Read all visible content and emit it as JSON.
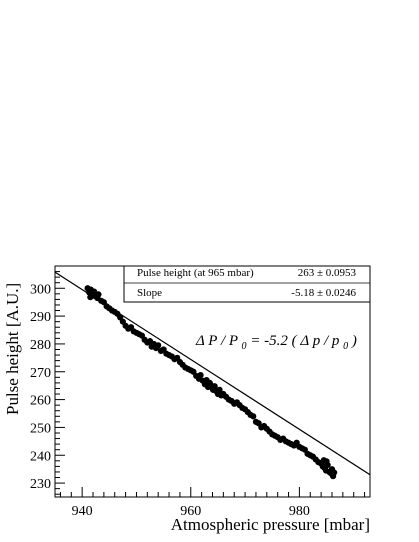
{
  "chart_data": {
    "type": "scatter",
    "title": "",
    "xlabel": "Atmospheric pressure [mbar]",
    "ylabel": "Pulse height [A.U.]",
    "xlim": [
      935,
      993
    ],
    "ylim": [
      225,
      308
    ],
    "xticks": [
      940,
      960,
      980
    ],
    "yticks": [
      230,
      240,
      250,
      260,
      270,
      280,
      290,
      300
    ],
    "grid": false,
    "legend": "none",
    "marker_color": "#000000",
    "stats_box": {
      "rows": [
        {
          "label": "Pulse height (at 965 mbar)",
          "value": "263 ± 0.0953"
        },
        {
          "label": "Slope",
          "value": "-5.18 ± 0.0246"
        }
      ]
    },
    "annotation": {
      "delta": "Δ",
      "P": "P",
      "slash": " /",
      "P0_base": "P",
      "P0_sub": "0",
      "equals": " = -5.2 (",
      "p": "p",
      "slash2": " / ",
      "p0_base": "p",
      "p0_sub": "0",
      "close": ")"
    },
    "fit_line": {
      "x": [
        935,
        993
      ],
      "y": [
        305.8,
        233.0
      ]
    },
    "series": [
      {
        "points": [
          [
            941.0,
            300.0
          ],
          [
            941.3,
            298.5
          ],
          [
            941.6,
            299.5
          ],
          [
            941.9,
            297.5
          ],
          [
            942.2,
            298.8
          ],
          [
            942.5,
            297.0
          ],
          [
            941.5,
            296.8
          ],
          [
            942.8,
            296.5
          ],
          [
            943.0,
            297.8
          ],
          [
            943.5,
            295.5
          ],
          [
            944.0,
            295.0
          ],
          [
            944.5,
            293.5
          ],
          [
            945.0,
            292.8
          ],
          [
            945.5,
            292.0
          ],
          [
            946.0,
            291.5
          ],
          [
            946.5,
            290.8
          ],
          [
            947.0,
            289.5
          ],
          [
            947.5,
            288.0
          ],
          [
            948.0,
            286.5
          ],
          [
            948.5,
            285.5
          ],
          [
            949.0,
            286.0
          ],
          [
            949.5,
            284.5
          ],
          [
            950.0,
            284.0
          ],
          [
            950.5,
            283.5
          ],
          [
            951.0,
            283.0
          ],
          [
            951.5,
            281.5
          ],
          [
            952.0,
            280.5
          ],
          [
            952.5,
            281.0
          ],
          [
            952.8,
            279.0
          ],
          [
            953.2,
            280.0
          ],
          [
            953.6,
            278.5
          ],
          [
            954.0,
            279.5
          ],
          [
            954.5,
            277.5
          ],
          [
            955.0,
            278.0
          ],
          [
            955.5,
            276.5
          ],
          [
            956.0,
            276.0
          ],
          [
            956.5,
            275.5
          ],
          [
            957.0,
            274.5
          ],
          [
            957.5,
            275.0
          ],
          [
            958.0,
            273.5
          ],
          [
            958.5,
            272.5
          ],
          [
            959.0,
            271.5
          ],
          [
            959.5,
            271.0
          ],
          [
            960.0,
            270.5
          ],
          [
            960.5,
            270.0
          ],
          [
            961.0,
            268.5
          ],
          [
            961.5,
            267.5
          ],
          [
            961.8,
            268.8
          ],
          [
            962.2,
            266.8
          ],
          [
            962.6,
            265.5
          ],
          [
            962.9,
            267.0
          ],
          [
            963.2,
            264.5
          ],
          [
            963.5,
            266.0
          ],
          [
            963.8,
            265.0
          ],
          [
            964.1,
            263.5
          ],
          [
            964.4,
            264.8
          ],
          [
            964.7,
            263.0
          ],
          [
            965.0,
            262.0
          ],
          [
            965.3,
            263.5
          ],
          [
            965.6,
            261.5
          ],
          [
            966.0,
            262.0
          ],
          [
            966.5,
            261.0
          ],
          [
            967.0,
            260.0
          ],
          [
            967.5,
            259.5
          ],
          [
            968.0,
            258.5
          ],
          [
            968.5,
            259.0
          ],
          [
            969.0,
            258.0
          ],
          [
            969.5,
            257.0
          ],
          [
            970.0,
            256.5
          ],
          [
            970.5,
            255.5
          ],
          [
            971.0,
            254.5
          ],
          [
            971.5,
            254.0
          ],
          [
            972.0,
            252.0
          ],
          [
            972.5,
            251.5
          ],
          [
            973.0,
            250.0
          ],
          [
            973.5,
            250.5
          ],
          [
            974.0,
            249.5
          ],
          [
            974.5,
            248.5
          ],
          [
            975.0,
            247.5
          ],
          [
            975.5,
            247.0
          ],
          [
            976.0,
            246.5
          ],
          [
            976.5,
            245.5
          ],
          [
            977.0,
            246.0
          ],
          [
            977.5,
            245.0
          ],
          [
            978.0,
            244.5
          ],
          [
            978.5,
            244.0
          ],
          [
            979.0,
            243.5
          ],
          [
            979.5,
            244.5
          ],
          [
            980.0,
            243.0
          ],
          [
            980.5,
            242.5
          ],
          [
            981.0,
            242.0
          ],
          [
            981.5,
            240.5
          ],
          [
            982.0,
            240.0
          ],
          [
            982.5,
            239.5
          ],
          [
            983.0,
            238.5
          ],
          [
            983.5,
            237.5
          ],
          [
            984.0,
            237.0
          ],
          [
            984.3,
            236.0
          ],
          [
            984.6,
            235.5
          ],
          [
            984.9,
            234.5
          ],
          [
            985.2,
            236.5
          ],
          [
            985.5,
            234.0
          ],
          [
            985.8,
            233.5
          ],
          [
            986.0,
            235.0
          ],
          [
            986.2,
            232.5
          ],
          [
            986.4,
            233.8
          ],
          [
            985.0,
            237.8
          ],
          [
            984.5,
            238.2
          ]
        ]
      }
    ]
  }
}
